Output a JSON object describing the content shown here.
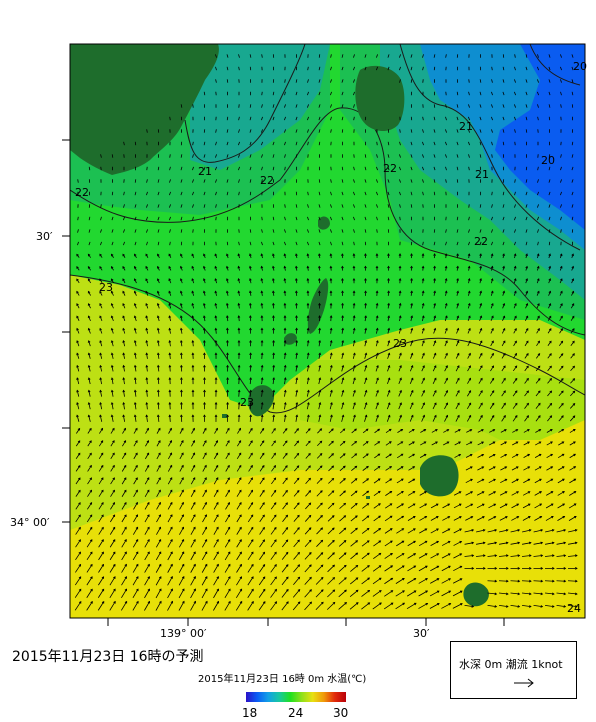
{
  "caption": "2015年11月23日 16時の予測",
  "scale": {
    "title": "2015年11月23日 16時 0m 水温(℃)",
    "ticks": [
      "18",
      "24",
      "30"
    ]
  },
  "legend": {
    "label": "水深 0m 潮流 1knot"
  },
  "axes": {
    "lat_labels": [
      "30′",
      "34° 00′"
    ],
    "lon_labels": [
      "139° 00′",
      "30′"
    ]
  },
  "contour_labels": [
    "20",
    "20",
    "21",
    "21",
    "21",
    "22",
    "22",
    "22",
    "22",
    "23",
    "23",
    "23",
    "24"
  ],
  "colors": {
    "land": "#1e6d2c",
    "c20": "#0a5cf0",
    "c21": "#0e8ed0",
    "c21b": "#18a890",
    "c22": "#1cc052",
    "c22b": "#22d830",
    "c23": "#8ee010",
    "c23b": "#bde014",
    "c24": "#e8e008",
    "c24b": "#ecd808"
  }
}
